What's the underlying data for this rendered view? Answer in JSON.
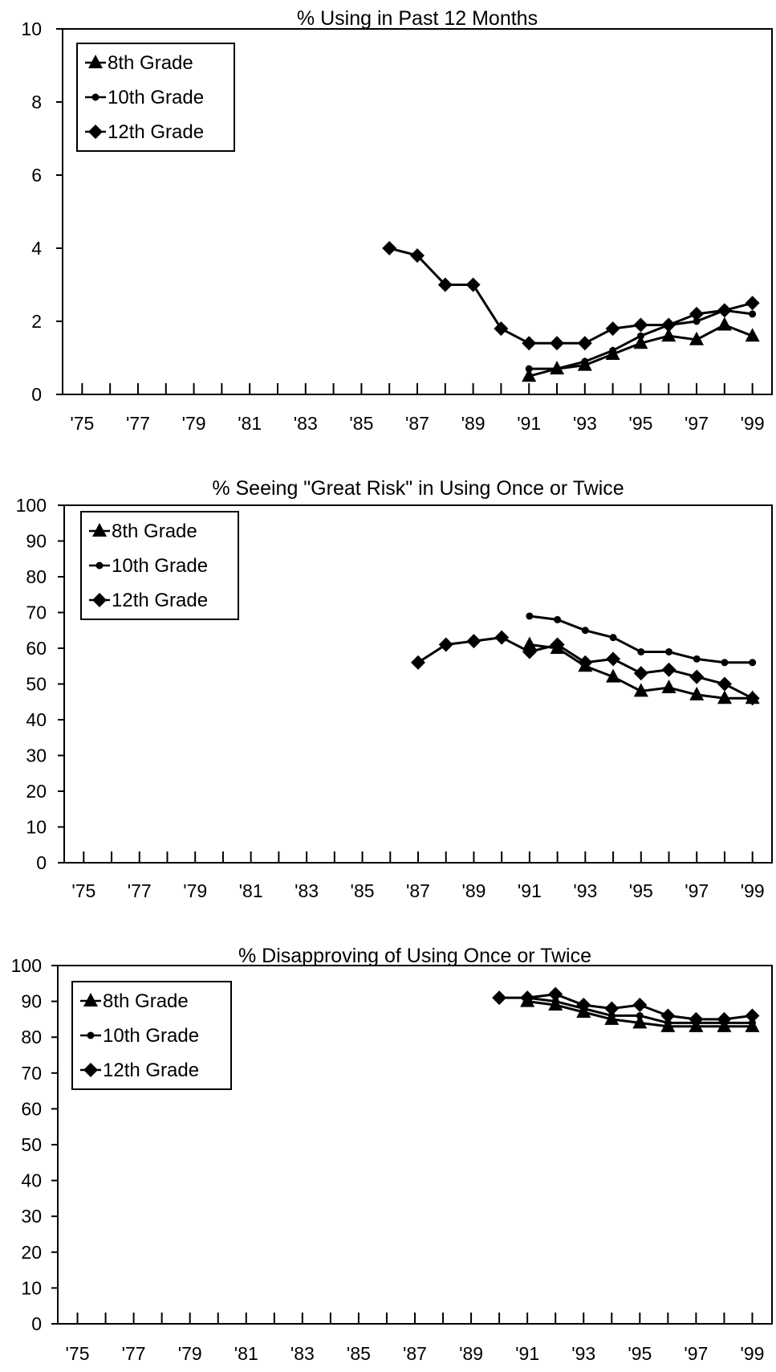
{
  "chart_data": [
    {
      "type": "line",
      "title": "% Using in Past 12 Months",
      "xlabel": "",
      "ylabel": "",
      "x_tick_labels": [
        "'75",
        "'77",
        "'79",
        "'81",
        "'83",
        "'85",
        "'87",
        "'89",
        "'91",
        "'93",
        "'95",
        "'97",
        "'99"
      ],
      "y_ticks": [
        0,
        2,
        4,
        6,
        8,
        10
      ],
      "xlim": [
        1975,
        1999
      ],
      "ylim": [
        0,
        10
      ],
      "grid": false,
      "legend_position": "top-left",
      "series": [
        {
          "name": "8th Grade",
          "marker": "triangle",
          "x": [
            1991,
            1992,
            1993,
            1994,
            1995,
            1996,
            1997,
            1998,
            1999
          ],
          "values": [
            0.5,
            0.7,
            0.8,
            1.1,
            1.4,
            1.6,
            1.5,
            1.9,
            1.6
          ]
        },
        {
          "name": "10th Grade",
          "marker": "dot",
          "x": [
            1991,
            1992,
            1993,
            1994,
            1995,
            1996,
            1997,
            1998,
            1999
          ],
          "values": [
            0.7,
            0.7,
            0.9,
            1.2,
            1.6,
            1.9,
            2.0,
            2.3,
            2.2
          ]
        },
        {
          "name": "12th Grade",
          "marker": "diamond",
          "x": [
            1986,
            1987,
            1988,
            1989,
            1990,
            1991,
            1992,
            1993,
            1994,
            1995,
            1996,
            1997,
            1998,
            1999
          ],
          "values": [
            4.0,
            3.8,
            3.0,
            3.0,
            1.8,
            1.4,
            1.4,
            1.4,
            1.8,
            1.9,
            1.9,
            2.2,
            2.3,
            2.5
          ]
        }
      ]
    },
    {
      "type": "line",
      "title": "% Seeing \"Great Risk\" in Using Once or Twice",
      "xlabel": "",
      "ylabel": "",
      "x_tick_labels": [
        "'75",
        "'77",
        "'79",
        "'81",
        "'83",
        "'85",
        "'87",
        "'89",
        "'91",
        "'93",
        "'95",
        "'97",
        "'99"
      ],
      "y_ticks": [
        0,
        10,
        20,
        30,
        40,
        50,
        60,
        70,
        80,
        90,
        100
      ],
      "xlim": [
        1975,
        1999
      ],
      "ylim": [
        0,
        100
      ],
      "grid": false,
      "legend_position": "top-left",
      "series": [
        {
          "name": "8th Grade",
          "marker": "triangle",
          "x": [
            1991,
            1992,
            1993,
            1994,
            1995,
            1996,
            1997,
            1998,
            1999
          ],
          "values": [
            61,
            60,
            55,
            52,
            48,
            49,
            47,
            46,
            46
          ]
        },
        {
          "name": "10th Grade",
          "marker": "dot",
          "x": [
            1991,
            1992,
            1993,
            1994,
            1995,
            1996,
            1997,
            1998,
            1999
          ],
          "values": [
            69,
            68,
            65,
            63,
            59,
            59,
            57,
            56,
            56
          ]
        },
        {
          "name": "12th Grade",
          "marker": "diamond",
          "x": [
            1987,
            1988,
            1989,
            1990,
            1991,
            1992,
            1993,
            1994,
            1995,
            1996,
            1997,
            1998,
            1999
          ],
          "values": [
            56,
            61,
            62,
            63,
            59,
            61,
            56,
            57,
            53,
            54,
            52,
            50,
            46
          ]
        }
      ]
    },
    {
      "type": "line",
      "title": "% Disapproving of Using Once or Twice",
      "xlabel": "",
      "ylabel": "",
      "x_tick_labels": [
        "'75",
        "'77",
        "'79",
        "'81",
        "'83",
        "'85",
        "'87",
        "'89",
        "'91",
        "'93",
        "'95",
        "'97",
        "'99"
      ],
      "y_ticks": [
        0,
        10,
        20,
        30,
        40,
        50,
        60,
        70,
        80,
        90,
        100
      ],
      "xlim": [
        1975,
        1999
      ],
      "ylim": [
        0,
        100
      ],
      "grid": false,
      "legend_position": "top-left",
      "series": [
        {
          "name": "8th Grade",
          "marker": "triangle",
          "x": [
            1991,
            1992,
            1993,
            1994,
            1995,
            1996,
            1997,
            1998,
            1999
          ],
          "values": [
            90,
            89,
            87,
            85,
            84,
            83,
            83,
            83,
            83
          ]
        },
        {
          "name": "10th Grade",
          "marker": "dot",
          "x": [
            1991,
            1992,
            1993,
            1994,
            1995,
            1996,
            1997,
            1998,
            1999
          ],
          "values": [
            91,
            90,
            88,
            86,
            86,
            84,
            84,
            84,
            84
          ]
        },
        {
          "name": "12th Grade",
          "marker": "diamond",
          "x": [
            1990,
            1991,
            1992,
            1993,
            1994,
            1995,
            1996,
            1997,
            1998,
            1999
          ],
          "values": [
            91,
            91,
            92,
            89,
            88,
            89,
            86,
            85,
            85,
            86
          ]
        }
      ]
    }
  ]
}
